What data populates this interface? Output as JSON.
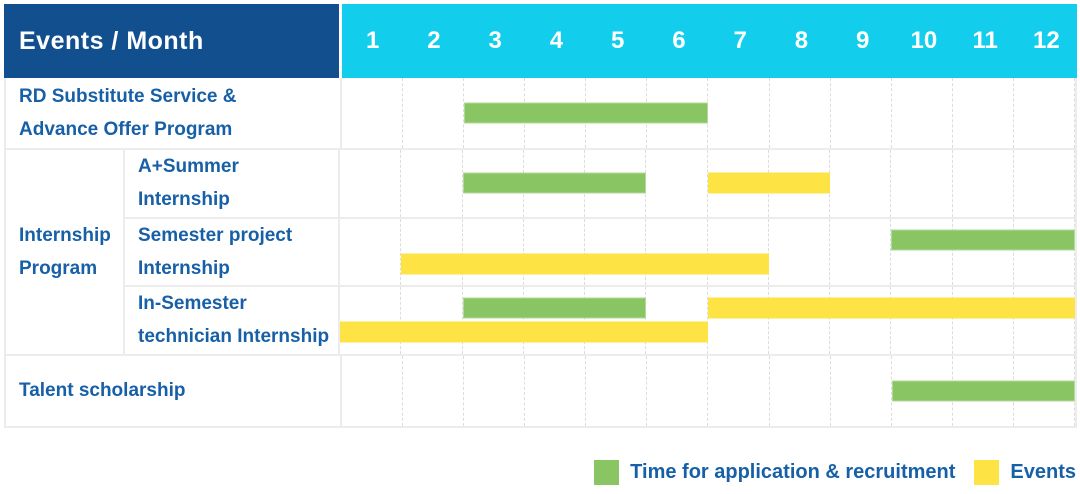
{
  "colors": {
    "navy": "#114f8f",
    "cyan": "#12cdec",
    "green": "#8ac564",
    "yellow": "#fde343",
    "label_text": "#1760a7",
    "grid": "#dcdcdc",
    "row_border": "#ececec"
  },
  "header": {
    "title": "Events / Month",
    "months": [
      "1",
      "2",
      "3",
      "4",
      "5",
      "6",
      "7",
      "8",
      "9",
      "10",
      "11",
      "12"
    ]
  },
  "legend": {
    "items": [
      {
        "key": "recruitment",
        "label": "Time for application & recruitment",
        "color": "#8ac564"
      },
      {
        "key": "events",
        "label": "Events",
        "color": "#fde343"
      }
    ]
  },
  "chart_data": {
    "type": "bar",
    "subtype": "gantt",
    "title": "Events / Month",
    "x_axis": {
      "label": "Month",
      "ticks": [
        1,
        2,
        3,
        4,
        5,
        6,
        7,
        8,
        9,
        10,
        11,
        12
      ],
      "range": [
        1,
        12
      ]
    },
    "legend_position": "bottom-right",
    "grid": "dashed-vertical-month-lines",
    "series_colors": {
      "recruitment": "#8ac564",
      "events": "#fde343"
    },
    "series_labels": {
      "recruitment": "Time for application & recruitment",
      "events": "Events"
    },
    "group_label_lines": {
      "Internship Program": [
        "Internship",
        "Program"
      ]
    },
    "rows": [
      {
        "group": null,
        "label": "RD Substitute Service & Advance Offer Program",
        "label_lines": [
          "RD Substitute Service &",
          "Advance Offer Program"
        ],
        "bars": [
          {
            "series": "recruitment",
            "start_month": 3,
            "end_month": 6,
            "line": 0
          }
        ]
      },
      {
        "group": "Internship Program",
        "label": "A+Summer Internship",
        "label_lines": [
          "A+Summer",
          "Internship"
        ],
        "bars": [
          {
            "series": "recruitment",
            "start_month": 3,
            "end_month": 5,
            "line": 0
          },
          {
            "series": "events",
            "start_month": 7,
            "end_month": 8,
            "line": 0
          }
        ]
      },
      {
        "group": "Internship Program",
        "label": "Semester project Internship",
        "label_lines": [
          "Semester project",
          "Internship"
        ],
        "bars": [
          {
            "series": "recruitment",
            "start_month": 10,
            "end_month": 12,
            "line": 0
          },
          {
            "series": "events",
            "start_month": 2,
            "end_month": 7,
            "line": 1
          }
        ]
      },
      {
        "group": "Internship Program",
        "label": "In-Semester technician Internship",
        "label_lines": [
          "In-Semester",
          "technician Internship"
        ],
        "bars": [
          {
            "series": "recruitment",
            "start_month": 3,
            "end_month": 5,
            "line": 0
          },
          {
            "series": "events",
            "start_month": 7,
            "end_month": 12,
            "line": 0
          },
          {
            "series": "events",
            "start_month": 1,
            "end_month": 6,
            "line": 1
          }
        ]
      },
      {
        "group": null,
        "label": "Talent scholarship",
        "label_lines": [
          "Talent scholarship"
        ],
        "bars": [
          {
            "series": "recruitment",
            "start_month": 10,
            "end_month": 12,
            "line": 0
          }
        ]
      }
    ]
  }
}
